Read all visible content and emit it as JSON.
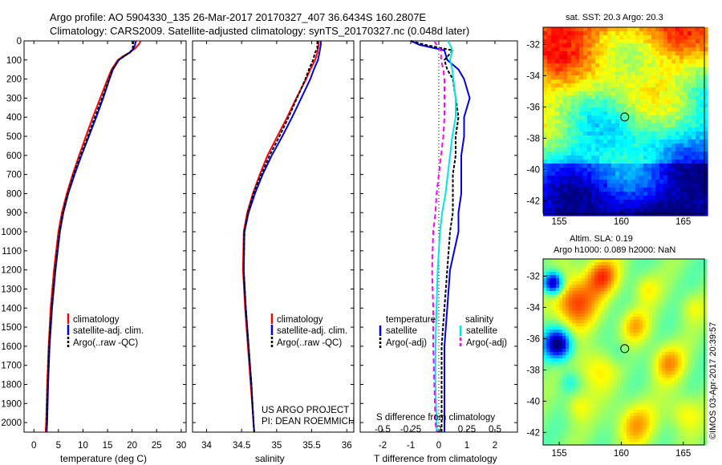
{
  "header": {
    "line1": "Argo profile: AO 5904330_135 26-Mar-2017 20170327_407 36.6434S 160.2807E",
    "line2": "Climatology: CARS2009. Satellite-adjusted climatology: synTS_20170327.nc (0.048d later)"
  },
  "colors": {
    "climatology": "#ff0000",
    "satellite": "#0000e6",
    "argo": "#000000",
    "salinity_sat": "#00e5e5",
    "salinity_argo": "#ff00ff"
  },
  "chart_data": [
    {
      "type": "line",
      "panel": "temperature",
      "xlabel": "temperature (deg C)",
      "ylabel": "",
      "xlim": [
        -2,
        31
      ],
      "ylim": [
        2050,
        0
      ],
      "xticks": [
        "0",
        "5",
        "10",
        "15",
        "20",
        "25",
        "30"
      ],
      "yticks": [
        "0",
        "100",
        "200",
        "300",
        "400",
        "500",
        "600",
        "700",
        "800",
        "900",
        "1000",
        "1100",
        "1200",
        "1300",
        "1400",
        "1500",
        "1600",
        "1700",
        "1800",
        "1900",
        "2000"
      ],
      "legend": [
        "climatology",
        "satellite-adj. clim.",
        "Argo(..raw -QC)"
      ],
      "depth": [
        0,
        20,
        40,
        60,
        80,
        100,
        150,
        200,
        300,
        400,
        500,
        600,
        700,
        800,
        900,
        1000,
        1200,
        1400,
        1600,
        1800,
        2000,
        2050
      ],
      "series": [
        {
          "name": "climatology",
          "values": [
            21.8,
            21.3,
            20.6,
            19.5,
            18.2,
            17.1,
            15.8,
            15.0,
            13.5,
            12.0,
            10.6,
            9.2,
            7.9,
            6.7,
            5.7,
            5.0,
            4.1,
            3.4,
            3.0,
            2.7,
            2.5,
            2.4
          ]
        },
        {
          "name": "satellite-adj. clim.",
          "values": [
            20.8,
            20.6,
            20.3,
            19.6,
            18.4,
            17.3,
            16.1,
            15.4,
            14.1,
            12.7,
            11.2,
            9.7,
            8.3,
            7.0,
            6.0,
            5.3,
            4.4,
            3.7,
            3.2,
            2.9,
            2.7,
            2.6
          ]
        },
        {
          "name": "Argo(..raw -QC)",
          "values": [
            20.3,
            20.2,
            20.1,
            19.6,
            18.4,
            17.3,
            16.0,
            15.3,
            13.9,
            12.4,
            11.0,
            9.5,
            8.1,
            6.9,
            5.9,
            5.2,
            4.3,
            3.6,
            3.1,
            2.8,
            2.6,
            2.5
          ]
        }
      ]
    },
    {
      "type": "line",
      "panel": "salinity",
      "xlabel": "salinity",
      "xlim": [
        33.8,
        36.1
      ],
      "ylim": [
        2050,
        0
      ],
      "xticks": [
        "34",
        "34.5",
        "35",
        "35.5",
        "36"
      ],
      "legend": [
        "climatology",
        "satellite-adj. clim.",
        "Argo(..raw -QC)"
      ],
      "depth": [
        0,
        20,
        40,
        60,
        100,
        150,
        200,
        300,
        400,
        500,
        600,
        700,
        800,
        900,
        1000,
        1200,
        1400,
        1600,
        1800,
        2000,
        2050
      ],
      "series": [
        {
          "name": "climatology",
          "values": [
            35.6,
            35.6,
            35.59,
            35.58,
            35.55,
            35.48,
            35.42,
            35.28,
            35.15,
            35.01,
            34.87,
            34.76,
            34.66,
            34.58,
            34.53,
            34.52,
            34.55,
            34.59,
            34.63,
            34.67,
            34.68
          ]
        },
        {
          "name": "satellite-adj. clim.",
          "values": [
            35.63,
            35.63,
            35.62,
            35.61,
            35.59,
            35.53,
            35.48,
            35.35,
            35.22,
            35.08,
            34.93,
            34.8,
            34.69,
            34.6,
            34.54,
            34.53,
            34.56,
            34.6,
            34.64,
            34.67,
            34.68
          ]
        },
        {
          "name": "Argo(..raw -QC)",
          "values": [
            35.58,
            35.58,
            35.58,
            35.55,
            35.52,
            35.46,
            35.41,
            35.29,
            35.17,
            35.04,
            34.9,
            34.78,
            34.67,
            34.59,
            34.54,
            34.53,
            34.56,
            34.6,
            34.64,
            34.67,
            34.68
          ]
        }
      ],
      "annotations": [
        "US ARGO PROJECT",
        "PI: DEAN ROEMMICH"
      ]
    },
    {
      "type": "line",
      "panel": "difference",
      "xlabel": "T difference from climatology",
      "xlabel_top": "S difference from climatology",
      "xlim": [
        -2.8,
        2.8
      ],
      "ylim": [
        2050,
        0
      ],
      "xticks": [
        "-2",
        "-1",
        "0",
        "1",
        "2"
      ],
      "top_ticks": [
        "-0.5",
        "-0.25",
        "0",
        "0.25",
        "0.5"
      ],
      "legend_titles": [
        "temperature",
        "salinity"
      ],
      "legend": [
        "satellite",
        "Argo(-adj)",
        "satellite",
        "Argo(-adj)"
      ],
      "depth": [
        0,
        20,
        50,
        100,
        150,
        200,
        300,
        400,
        500,
        600,
        700,
        800,
        900,
        1000,
        1200,
        1400,
        1600,
        1800,
        2000,
        2050
      ],
      "series": [
        {
          "name": "satellite",
          "quantity": "temperature",
          "values": [
            -1.0,
            -0.7,
            0.2,
            0.3,
            0.7,
            0.9,
            1.1,
            0.9,
            0.9,
            0.8,
            0.8,
            0.8,
            0.7,
            0.7,
            0.4,
            0.3,
            0.2,
            0.2,
            0.2,
            0.2
          ]
        },
        {
          "name": "Argo(-adj)",
          "quantity": "temperature",
          "values": [
            -1.0,
            -0.5,
            0.5,
            0.2,
            0.3,
            0.5,
            0.6,
            0.7,
            0.6,
            0.6,
            0.5,
            0.5,
            0.5,
            0.4,
            0.3,
            0.2,
            0.1,
            0.1,
            0.1,
            0.1
          ]
        },
        {
          "name": "satellite",
          "quantity": "salinity",
          "values": [
            0.08,
            0.1,
            0.12,
            0.1,
            0.12,
            0.13,
            0.15,
            0.15,
            0.12,
            0.1,
            0.08,
            0.06,
            0.03,
            0.01,
            -0.01,
            -0.02,
            -0.03,
            -0.03,
            -0.02,
            -0.02
          ]
        },
        {
          "name": "Argo(-adj)",
          "quantity": "salinity",
          "values": [
            -0.04,
            -0.02,
            0.02,
            0.02,
            0.04,
            0.05,
            0.05,
            0.05,
            0.04,
            0.02,
            0.0,
            -0.02,
            -0.03,
            -0.05,
            -0.06,
            -0.05,
            -0.05,
            -0.04,
            -0.03,
            -0.02
          ]
        }
      ]
    },
    {
      "type": "heatmap",
      "panel": "sst-map",
      "title": "sat. SST: 20.3  Argo: 20.3",
      "xticks": [
        "155",
        "160",
        "165"
      ],
      "yticks": [
        "-32",
        "-34",
        "-36",
        "-38",
        "-40",
        "-42"
      ],
      "xlim": [
        153.7,
        166.7
      ],
      "ylim": [
        -42.8,
        -30.9
      ],
      "marker": [
        160.28,
        -36.64
      ]
    },
    {
      "type": "heatmap",
      "panel": "sla-map",
      "title": "Altim. SLA: 0.19",
      "subtitle": "Argo h1000: 0.089 h2000: NaN",
      "xticks": [
        "155",
        "160",
        "165"
      ],
      "yticks": [
        "-32",
        "-34",
        "-36",
        "-38",
        "-40",
        "-42"
      ],
      "xlim": [
        153.7,
        166.7
      ],
      "ylim": [
        -42.8,
        -30.9
      ],
      "marker": [
        160.28,
        -36.64
      ]
    }
  ],
  "credit": "©IMOS 03-Apr-2017 20:39:57"
}
